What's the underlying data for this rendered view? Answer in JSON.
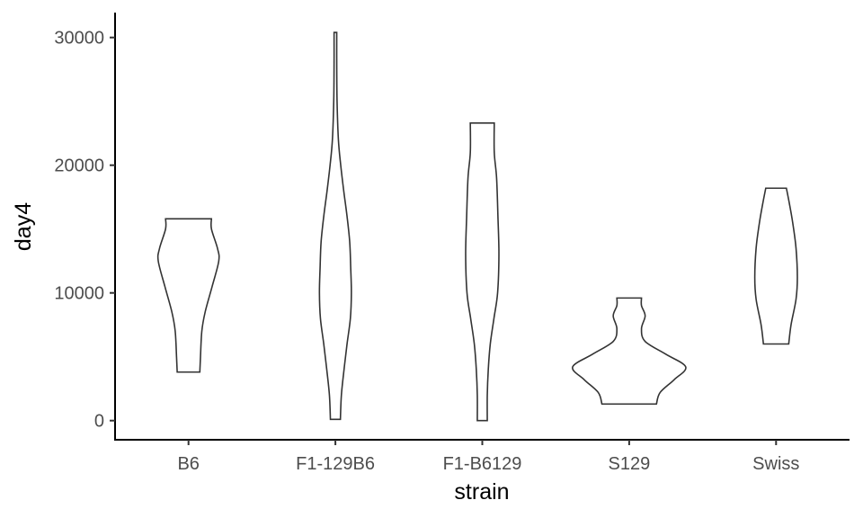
{
  "chart_data": {
    "type": "violin",
    "xlabel": "strain",
    "ylabel": "day4",
    "categories": [
      "B6",
      "F1-129B6",
      "F1-B6129",
      "S129",
      "Swiss"
    ],
    "ylim": [
      -1400,
      32000
    ],
    "yticks": [
      0,
      10000,
      20000,
      30000
    ],
    "ytick_labels": [
      "0",
      "10000",
      "20000",
      "30000"
    ],
    "grid": false,
    "legend": "none",
    "violins": [
      {
        "category": "B6",
        "min": 3800,
        "max": 15800,
        "density": [
          [
            3800,
            0.34
          ],
          [
            5000,
            0.36
          ],
          [
            7000,
            0.4
          ],
          [
            8500,
            0.5
          ],
          [
            10500,
            0.71
          ],
          [
            12500,
            0.91
          ],
          [
            13500,
            0.87
          ],
          [
            15000,
            0.69
          ],
          [
            15800,
            0.69
          ]
        ]
      },
      {
        "category": "F1-129B6",
        "min": 100,
        "max": 30400,
        "density": [
          [
            100,
            0.15
          ],
          [
            2000,
            0.18
          ],
          [
            4000,
            0.26
          ],
          [
            6000,
            0.35
          ],
          [
            8000,
            0.45
          ],
          [
            10000,
            0.48
          ],
          [
            12000,
            0.46
          ],
          [
            14000,
            0.43
          ],
          [
            16000,
            0.35
          ],
          [
            18000,
            0.25
          ],
          [
            20000,
            0.16
          ],
          [
            22000,
            0.09
          ],
          [
            25000,
            0.05
          ],
          [
            28000,
            0.04
          ],
          [
            30400,
            0.04
          ]
        ]
      },
      {
        "category": "F1-B6129",
        "min": 0,
        "max": 23300,
        "density": [
          [
            0,
            0.15
          ],
          [
            2000,
            0.15
          ],
          [
            4000,
            0.18
          ],
          [
            6000,
            0.24
          ],
          [
            8000,
            0.35
          ],
          [
            10000,
            0.46
          ],
          [
            13000,
            0.5
          ],
          [
            16000,
            0.47
          ],
          [
            19000,
            0.43
          ],
          [
            21000,
            0.36
          ],
          [
            23300,
            0.36
          ]
        ]
      },
      {
        "category": "S129",
        "min": 1300,
        "max": 9600,
        "density": [
          [
            1300,
            0.82
          ],
          [
            2200,
            0.93
          ],
          [
            3200,
            1.35
          ],
          [
            4200,
            1.7
          ],
          [
            5200,
            1.1
          ],
          [
            6200,
            0.48
          ],
          [
            7200,
            0.37
          ],
          [
            8200,
            0.48
          ],
          [
            9000,
            0.37
          ],
          [
            9600,
            0.37
          ]
        ]
      },
      {
        "category": "Swiss",
        "min": 6000,
        "max": 18200,
        "density": [
          [
            6000,
            0.38
          ],
          [
            7500,
            0.45
          ],
          [
            9500,
            0.6
          ],
          [
            11200,
            0.64
          ],
          [
            13500,
            0.6
          ],
          [
            15500,
            0.5
          ],
          [
            17000,
            0.4
          ],
          [
            18200,
            0.31
          ]
        ]
      }
    ]
  }
}
